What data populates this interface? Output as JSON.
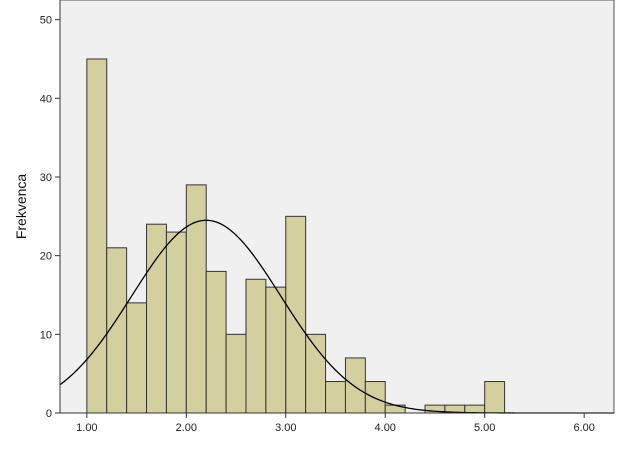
{
  "chart_data": {
    "type": "bar",
    "title": "",
    "xlabel": "",
    "ylabel": "Frekvenca",
    "xlim": [
      0.73,
      6.3
    ],
    "ylim": [
      0,
      52.5
    ],
    "x_ticks": [
      {
        "value": 1,
        "label": "1.00"
      },
      {
        "value": 2,
        "label": "2.00"
      },
      {
        "value": 3,
        "label": "3.00"
      },
      {
        "value": 4,
        "label": "4.00"
      },
      {
        "value": 5,
        "label": "5.00"
      },
      {
        "value": 6,
        "label": "6.00"
      }
    ],
    "y_ticks": [
      {
        "value": 0,
        "label": "0"
      },
      {
        "value": 10,
        "label": "10"
      },
      {
        "value": 20,
        "label": "20"
      },
      {
        "value": 30,
        "label": "30"
      },
      {
        "value": 40,
        "label": "40"
      },
      {
        "value": 50,
        "label": "50"
      }
    ],
    "bin_width": 0.2,
    "bars": [
      {
        "start": 1.0,
        "value": 45
      },
      {
        "start": 1.2,
        "value": 21
      },
      {
        "start": 1.4,
        "value": 14
      },
      {
        "start": 1.6,
        "value": 24
      },
      {
        "start": 1.8,
        "value": 23
      },
      {
        "start": 2.0,
        "value": 29
      },
      {
        "start": 2.2,
        "value": 18
      },
      {
        "start": 2.4,
        "value": 10
      },
      {
        "start": 2.6,
        "value": 17
      },
      {
        "start": 2.8,
        "value": 16
      },
      {
        "start": 3.0,
        "value": 25
      },
      {
        "start": 3.2,
        "value": 10
      },
      {
        "start": 3.4,
        "value": 4
      },
      {
        "start": 3.6,
        "value": 7
      },
      {
        "start": 3.8,
        "value": 4
      },
      {
        "start": 4.0,
        "value": 1
      },
      {
        "start": 4.4,
        "value": 1
      },
      {
        "start": 4.6,
        "value": 1
      },
      {
        "start": 4.8,
        "value": 1
      },
      {
        "start": 5.0,
        "value": 4
      }
    ],
    "normal_curve": {
      "mean": 2.2,
      "peak": 24.5,
      "sd": 0.75
    },
    "grid": false,
    "legend": "none",
    "colors": {
      "bar_fill": "#d4cf9f",
      "bar_stroke": "#333333",
      "plot_background": "#f0f0f0",
      "curve": "#000000"
    }
  }
}
